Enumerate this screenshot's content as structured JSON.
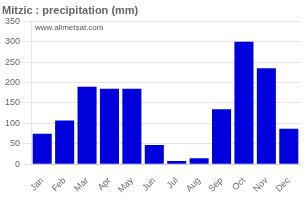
{
  "chart_data": {
    "type": "bar",
    "title": "Mitzic : precipitation (mm)",
    "categories": [
      "Jan",
      "Feb",
      "Mar",
      "Apr",
      "May",
      "Jun",
      "Jul",
      "Aug",
      "Sep",
      "Oct",
      "Nov",
      "Dec"
    ],
    "values": [
      75,
      107,
      190,
      185,
      185,
      47,
      8,
      15,
      135,
      300,
      235,
      87
    ],
    "color": "#0000dd",
    "ylim": [
      0,
      350
    ],
    "yticks": [
      0,
      50,
      100,
      150,
      200,
      250,
      300,
      350
    ],
    "grid": true,
    "annotations": [
      "www.allmetsat.com"
    ]
  }
}
